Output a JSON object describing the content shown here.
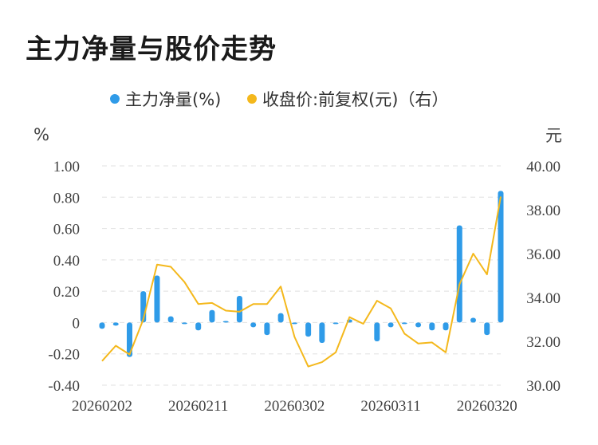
{
  "title": "主力净量与股价走势",
  "chart_data": {
    "type": "bar+line",
    "left_unit": "%",
    "right_unit": "元",
    "legend": [
      {
        "label": "主力净量(%)",
        "color": "#2f9be8"
      },
      {
        "label": "收盘价:前复权(元)（右）",
        "color": "#f4b81c"
      }
    ],
    "y_left": {
      "min": -0.4,
      "max": 1.0,
      "ticks": [
        "-0.40",
        "-0.20",
        "0",
        "0.20",
        "0.40",
        "0.60",
        "0.80",
        "1.00"
      ]
    },
    "y_right": {
      "min": 30,
      "max": 40,
      "ticks": [
        "30.00",
        "32.00",
        "34.00",
        "36.00",
        "38.00",
        "40.00"
      ]
    },
    "x_tick_labels": [
      {
        "index": 0,
        "label": "20260202"
      },
      {
        "index": 7,
        "label": "20260211"
      },
      {
        "index": 14,
        "label": "20260302"
      },
      {
        "index": 21,
        "label": "20260311"
      },
      {
        "index": 28,
        "label": "20260320"
      }
    ],
    "series": [
      {
        "name": "主力净量(%)",
        "kind": "bar",
        "color": "#2f9be8",
        "values": [
          -0.04,
          -0.02,
          -0.22,
          0.2,
          0.3,
          0.04,
          -0.01,
          -0.05,
          0.08,
          0.01,
          0.17,
          -0.03,
          -0.08,
          0.06,
          -0.01,
          -0.09,
          -0.13,
          -0.01,
          0.02,
          0,
          -0.12,
          -0.03,
          -0.01,
          -0.03,
          -0.05,
          -0.05,
          0.62,
          0.03,
          -0.08,
          0.84
        ]
      },
      {
        "name": "收盘价:前复权(元)（右）",
        "kind": "line",
        "color": "#f4b81c",
        "values": [
          31.1,
          31.8,
          31.4,
          33,
          35.5,
          35.4,
          34.7,
          33.7,
          33.75,
          33.4,
          33.35,
          33.7,
          33.7,
          34.5,
          32.2,
          30.85,
          31.05,
          31.5,
          33.1,
          32.8,
          33.85,
          33.5,
          32.35,
          31.9,
          31.95,
          31.5,
          34.6,
          36,
          35.05,
          38.6
        ]
      }
    ]
  }
}
